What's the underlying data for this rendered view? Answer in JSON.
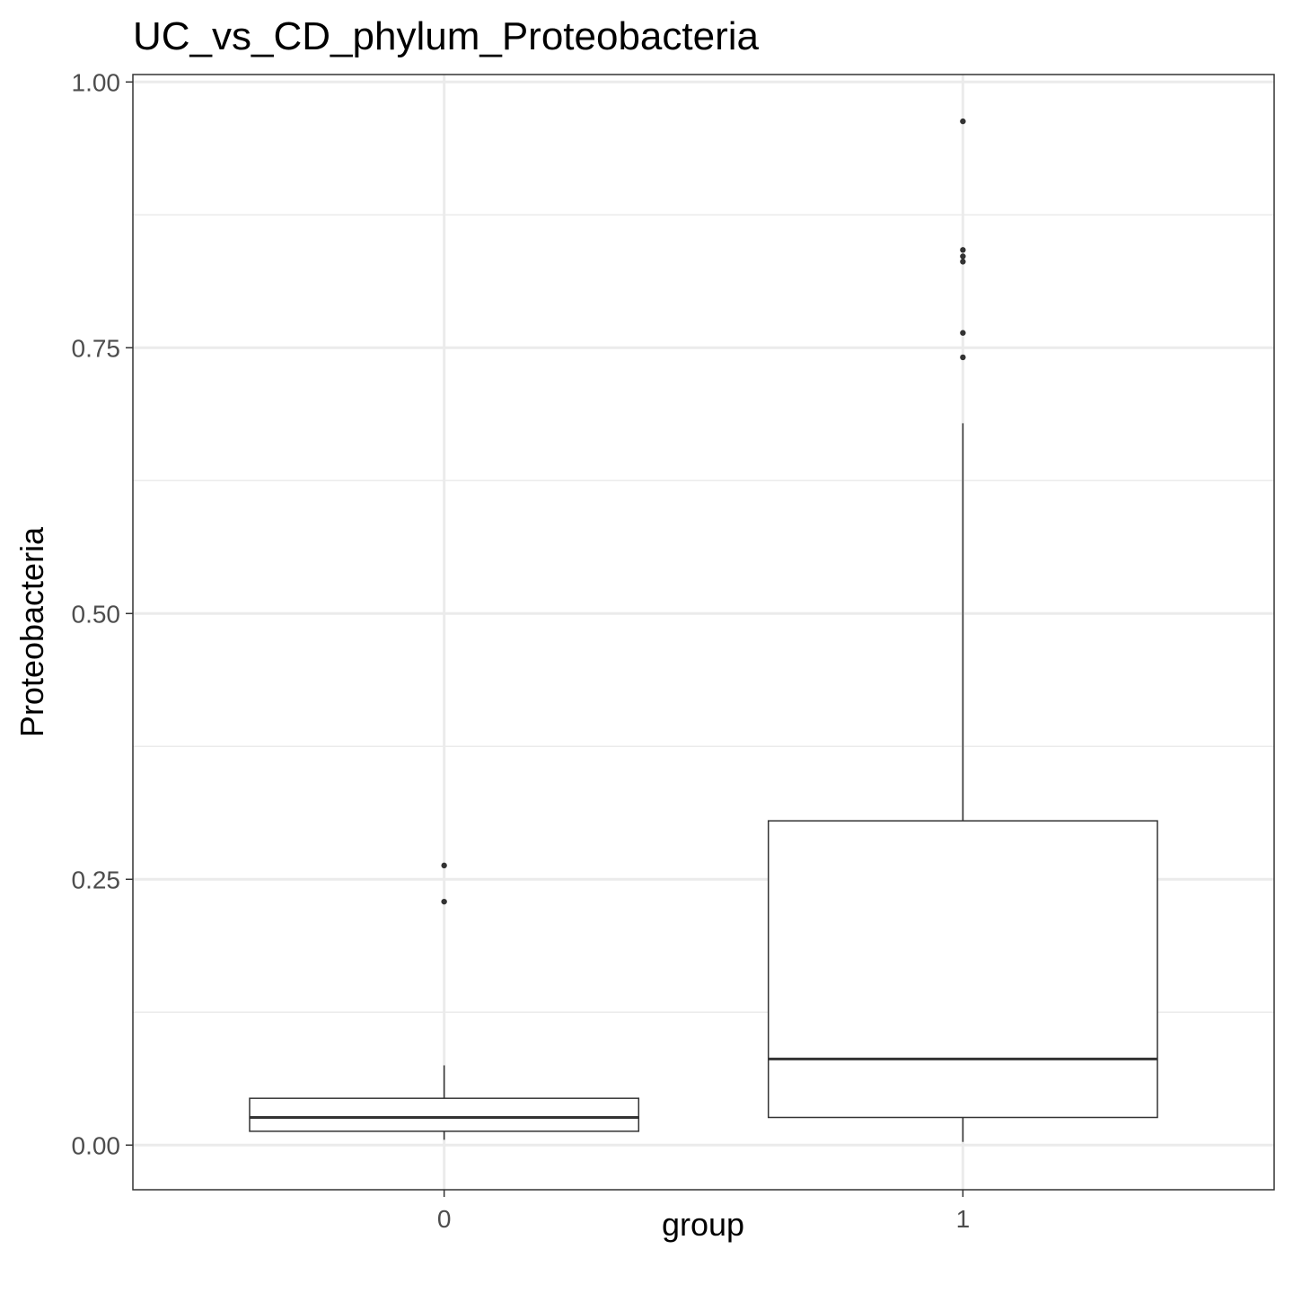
{
  "chart_data": {
    "type": "boxplot",
    "title": "UC_vs_CD_phylum_Proteobacteria",
    "xlabel": "group",
    "ylabel": "Proteobacteria",
    "categories": [
      "0",
      "1"
    ],
    "ylim": [
      -0.042,
      1.007
    ],
    "y_ticks": [
      0,
      0.25,
      0.5,
      0.75,
      1
    ],
    "y_tick_labels": [
      "0.00",
      "0.25",
      "0.50",
      "0.75",
      "1.00"
    ],
    "grid": true,
    "boxes": [
      {
        "group": "0",
        "whisker_low": 0.005,
        "q1": 0.013,
        "median": 0.026,
        "q3": 0.044,
        "whisker_high": 0.075,
        "outliers": [
          0.263,
          0.229
        ]
      },
      {
        "group": "1",
        "whisker_low": 0.003,
        "q1": 0.026,
        "median": 0.081,
        "q3": 0.305,
        "whisker_high": 0.679,
        "outliers": [
          0.963,
          0.842,
          0.836,
          0.831,
          0.764,
          0.741
        ]
      }
    ],
    "colors": {
      "panel_border": "#333333",
      "grid": "#ebebeb",
      "box_line": "#333333",
      "outlier": "#333333"
    }
  }
}
